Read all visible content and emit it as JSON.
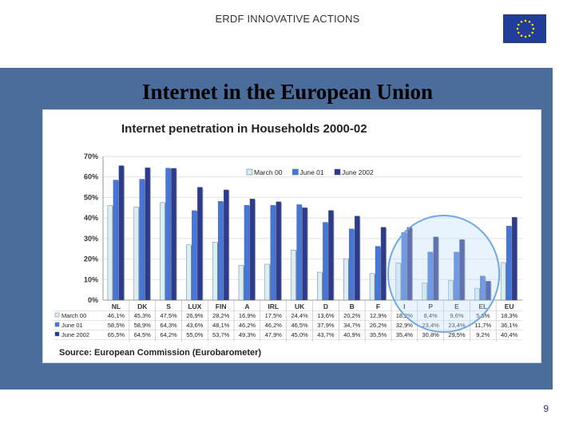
{
  "header": {
    "title": "ERDF INNOVATIVE ACTIONS"
  },
  "slide": {
    "title": "Internet in the European Union",
    "page_number": "9"
  },
  "colors": {
    "panel": "#4a6d9c",
    "march00": "#d8f0f2",
    "june01": "#4477dd",
    "june2002": "#2c3a8f",
    "highlight": "#6fa8e8"
  },
  "chart_data": {
    "type": "bar",
    "title": "Internet penetration in Households 2000-02",
    "categories": [
      "NL",
      "DK",
      "S",
      "LUX",
      "FIN",
      "A",
      "IRL",
      "UK",
      "D",
      "B",
      "F",
      "I",
      "P",
      "E",
      "EL",
      "EU"
    ],
    "series": [
      {
        "name": "March 00",
        "values": [
          46.1,
          45.3,
          47.5,
          26.9,
          28.2,
          16.9,
          17.5,
          24.4,
          13.6,
          20.2,
          12.9,
          18.2,
          8.4,
          9.6,
          5.8,
          18.3
        ],
        "labels": [
          "46,1%",
          "45,3%",
          "47,5%",
          "26,9%",
          "28,2%",
          "16,9%",
          "17,5%",
          "24,4%",
          "13,6%",
          "20,2%",
          "12,9%",
          "18,2%",
          "8,4%",
          "9,6%",
          "5,8%",
          "18,3%"
        ]
      },
      {
        "name": "June 01",
        "values": [
          58.5,
          58.9,
          64.3,
          43.6,
          48.1,
          46.2,
          46.2,
          46.5,
          37.9,
          34.7,
          26.2,
          32.9,
          23.4,
          23.4,
          11.7,
          36.1
        ],
        "labels": [
          "58,5%",
          "58,9%",
          "64,3%",
          "43,6%",
          "48,1%",
          "46,2%",
          "46,2%",
          "46,5%",
          "37,9%",
          "34,7%",
          "26,2%",
          "32,9%",
          "23,4%",
          "23,4%",
          "11,7%",
          "36,1%"
        ]
      },
      {
        "name": "June 2002",
        "values": [
          65.5,
          64.5,
          64.2,
          55.0,
          53.7,
          49.3,
          47.9,
          45.0,
          43.7,
          40.9,
          35.5,
          35.4,
          30.8,
          29.5,
          9.2,
          40.4
        ],
        "labels": [
          "65,5%",
          "64,5%",
          "64,2%",
          "55,0%",
          "53,7%",
          "49,3%",
          "47,9%",
          "45,0%",
          "43,7%",
          "40,9%",
          "35,5%",
          "35,4%",
          "30,8%",
          "29,5%",
          "9,2%",
          "40,4%"
        ]
      }
    ],
    "yticks": [
      "0%",
      "10%",
      "20%",
      "30%",
      "40%",
      "50%",
      "60%",
      "70%"
    ],
    "ylim": [
      0,
      70
    ],
    "legend": "top-center",
    "highlight_categories": [
      "I",
      "P",
      "E",
      "EL"
    ],
    "source": "Source: European Commission (Eurobarometer)"
  }
}
